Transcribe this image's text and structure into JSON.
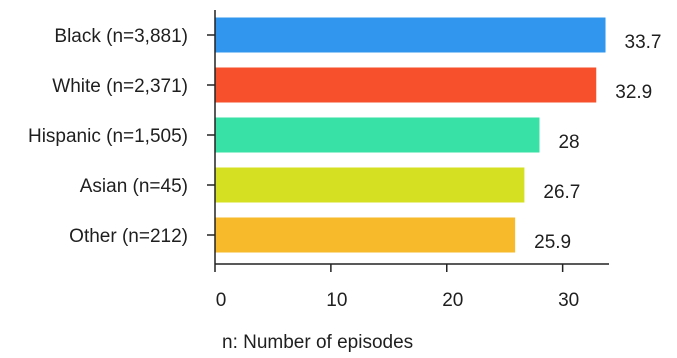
{
  "chart_data": {
    "type": "bar",
    "orientation": "horizontal",
    "categories": [
      "Black (n=3,881)",
      "White (n=2,371)",
      "Hispanic (n=1,505)",
      "Asian (n=45)",
      "Other (n=212)"
    ],
    "values": [
      33.7,
      32.9,
      28,
      26.7,
      25.9
    ],
    "value_labels": [
      "33.7",
      "32.9",
      "28",
      "26.7",
      "25.9"
    ],
    "bar_colors": [
      "#3197EE",
      "#F6502C",
      "#38E1A6",
      "#D6E022",
      "#F6BA2B"
    ],
    "xlim": [
      0,
      34
    ],
    "xticks": [
      0,
      10,
      20,
      30
    ],
    "xtick_labels": [
      "0",
      "10",
      "20",
      "30"
    ],
    "grid": false,
    "legend": "none",
    "xlabel": "",
    "ylabel": "",
    "title": ""
  },
  "footnote": "n: Number of episodes"
}
